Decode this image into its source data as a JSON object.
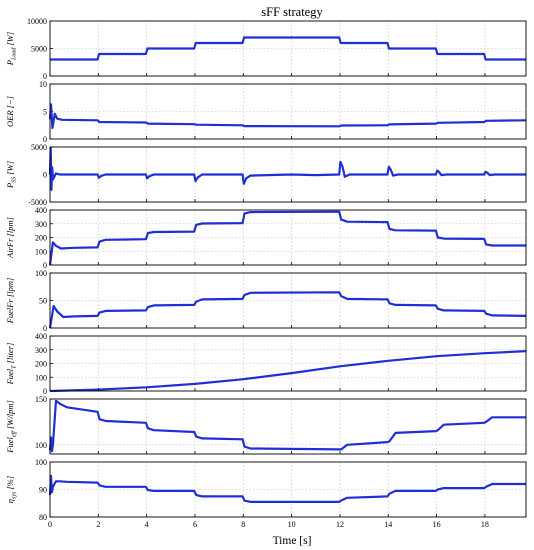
{
  "figure": {
    "title": "sFF strategy",
    "xlabel": "Time [s]"
  },
  "colors": {
    "line": "#1f2fd6",
    "axes": "#000000",
    "grid": "#bdbdbd"
  },
  "chart_data": [
    {
      "type": "line",
      "ylabel": "P_load [W]",
      "ylim": [
        0,
        10000
      ],
      "yticks": [
        0,
        5000,
        10000
      ],
      "xlim": [
        0,
        19.7
      ],
      "series": [
        {
          "x": [
            0,
            1.97,
            2.03,
            3.97,
            4.03,
            5.97,
            6.03,
            7.97,
            8.03,
            11.97,
            12.03,
            13.97,
            14.03,
            15.97,
            16.03,
            17.97,
            18.03,
            19.7
          ],
          "y": [
            3000,
            3000,
            4000,
            4000,
            5000,
            5000,
            6000,
            6000,
            7000,
            7000,
            6000,
            6000,
            5000,
            5000,
            4000,
            4000,
            3000,
            3000
          ]
        }
      ]
    },
    {
      "type": "line",
      "ylabel": "OER [−]",
      "ylim": [
        0,
        10
      ],
      "yticks": [
        0,
        5,
        10
      ],
      "xlim": [
        0,
        19.7
      ],
      "series": [
        {
          "x": [
            0,
            0.04,
            0.1,
            0.2,
            0.3,
            0.5,
            1.97,
            2.05,
            3.97,
            4.05,
            5.97,
            6.05,
            7.97,
            8.05,
            11.97,
            12.05,
            13.97,
            14.05,
            15.97,
            16.05,
            17.97,
            18.05,
            19.7
          ],
          "y": [
            3.6,
            6.3,
            2.0,
            4.6,
            3.7,
            3.5,
            3.4,
            3.1,
            3.0,
            2.8,
            2.7,
            2.6,
            2.5,
            2.35,
            2.3,
            2.45,
            2.5,
            2.65,
            2.8,
            2.95,
            3.1,
            3.3,
            3.4
          ]
        }
      ]
    },
    {
      "type": "line",
      "ylabel": "P_SS [W]",
      "ylim": [
        -5000,
        5000
      ],
      "yticks": [
        -5000,
        0,
        5000
      ],
      "xlim": [
        0,
        19.7
      ],
      "series": [
        {
          "x": [
            0,
            0.03,
            0.06,
            0.09,
            0.13,
            0.18,
            0.25,
            0.4,
            1.97,
            2.02,
            2.12,
            2.3,
            3.97,
            4.02,
            4.12,
            4.3,
            5.97,
            6.02,
            6.12,
            6.3,
            7.97,
            8.02,
            8.12,
            8.3,
            9.0,
            10.0,
            11.0,
            11.97,
            12.02,
            12.1,
            12.2,
            12.4,
            13.97,
            14.02,
            14.1,
            14.2,
            14.4,
            15.97,
            16.02,
            16.1,
            16.2,
            16.4,
            17.97,
            18.02,
            18.1,
            18.2,
            18.4,
            19.7
          ],
          "y": [
            0,
            4900,
            -2800,
            1300,
            -900,
            -400,
            200,
            0,
            0,
            -600,
            -250,
            0,
            0,
            -700,
            -300,
            0,
            0,
            -1200,
            -500,
            0,
            0,
            -1700,
            -700,
            -200,
            -100,
            0,
            -100,
            0,
            2300,
            1500,
            -400,
            0,
            0,
            1400,
            900,
            -200,
            0,
            0,
            700,
            500,
            -100,
            0,
            0,
            500,
            300,
            -100,
            0,
            0
          ]
        }
      ]
    },
    {
      "type": "line",
      "ylabel": "AirFr [lpm]",
      "ylim": [
        0,
        400
      ],
      "yticks": [
        0,
        100,
        200,
        300,
        400
      ],
      "xlim": [
        0,
        19.7
      ],
      "series": [
        {
          "x": [
            0,
            0.12,
            0.25,
            0.45,
            0.7,
            1.0,
            1.97,
            2.05,
            2.3,
            3.97,
            4.05,
            4.3,
            5.97,
            6.05,
            6.3,
            7.97,
            8.05,
            8.3,
            11.97,
            12.05,
            12.3,
            13.97,
            14.05,
            14.3,
            15.97,
            16.05,
            16.3,
            17.97,
            18.05,
            18.3,
            19.7
          ],
          "y": [
            0,
            165,
            140,
            120,
            122,
            125,
            128,
            170,
            183,
            188,
            232,
            240,
            243,
            292,
            302,
            305,
            375,
            385,
            388,
            330,
            315,
            312,
            262,
            252,
            250,
            200,
            192,
            190,
            150,
            142,
            142
          ]
        }
      ]
    },
    {
      "type": "line",
      "ylabel": "FuelFr [lpm]",
      "ylim": [
        0,
        100
      ],
      "yticks": [
        0,
        50,
        100
      ],
      "xlim": [
        0,
        19.7
      ],
      "series": [
        {
          "x": [
            0,
            0.15,
            0.3,
            0.55,
            1.0,
            1.97,
            2.05,
            2.3,
            3.97,
            4.05,
            4.3,
            5.97,
            6.05,
            6.3,
            7.97,
            8.05,
            8.3,
            11.97,
            12.05,
            12.3,
            13.97,
            14.05,
            14.3,
            15.97,
            16.05,
            16.3,
            17.97,
            18.05,
            18.3,
            19.7
          ],
          "y": [
            0,
            40,
            30,
            20,
            21,
            22,
            28,
            31,
            32,
            38,
            41,
            42,
            48,
            52,
            53,
            60,
            64,
            65,
            58,
            53,
            52,
            45,
            42,
            41,
            35,
            32,
            31,
            26,
            23,
            22
          ]
        }
      ]
    },
    {
      "type": "line",
      "ylabel": "Fuel_T [liter]",
      "ylim": [
        0,
        400
      ],
      "yticks": [
        0,
        100,
        200,
        300,
        400
      ],
      "xlim": [
        0,
        19.7
      ],
      "series": [
        {
          "x": [
            0,
            2,
            4,
            6,
            8,
            10,
            12,
            14,
            16,
            18,
            19.7
          ],
          "y": [
            0,
            10,
            27,
            52,
            86,
            130,
            180,
            220,
            253,
            275,
            290
          ]
        }
      ]
    },
    {
      "type": "line",
      "ylabel": "Fuel_eff [W/lpm]",
      "ylim": [
        90,
        150
      ],
      "yticks": [
        100,
        150
      ],
      "xlim": [
        0,
        19.7
      ],
      "series": [
        {
          "x": [
            0,
            0.04,
            0.08,
            0.12,
            0.25,
            0.4,
            0.7,
            1.97,
            2.05,
            2.3,
            3.97,
            4.05,
            4.3,
            5.97,
            6.05,
            6.3,
            7.97,
            8.05,
            8.3,
            11.97,
            12.05,
            12.3,
            13.97,
            14.05,
            14.3,
            15.97,
            16.05,
            16.3,
            17.97,
            18.05,
            18.3,
            19.7
          ],
          "y": [
            94,
            108,
            93,
            100,
            148,
            145,
            141,
            136,
            128,
            126,
            124,
            118,
            116,
            114,
            109,
            107,
            106,
            98,
            96,
            95,
            95,
            100,
            103,
            104,
            113,
            115,
            116,
            122,
            124,
            125,
            130,
            130
          ]
        }
      ]
    },
    {
      "type": "line",
      "ylabel": "η_sys [%]",
      "ylim": [
        80,
        100
      ],
      "yticks": [
        80,
        90,
        100
      ],
      "xlim": [
        0,
        19.7
      ],
      "series": [
        {
          "x": [
            0,
            0.04,
            0.08,
            0.12,
            0.25,
            0.4,
            0.7,
            1.97,
            2.05,
            2.3,
            3.97,
            4.05,
            4.3,
            5.97,
            6.05,
            6.3,
            7.97,
            8.05,
            8.3,
            11.97,
            12.05,
            12.3,
            13.97,
            14.05,
            14.3,
            15.97,
            16.05,
            16.3,
            17.97,
            18.05,
            18.3,
            19.7
          ],
          "y": [
            88,
            95,
            89,
            91,
            93,
            93,
            92.8,
            92.5,
            91.5,
            91,
            91,
            89.8,
            89.5,
            89.5,
            88,
            87.5,
            87.5,
            86,
            85.5,
            85.5,
            86,
            87,
            87.5,
            88.5,
            89.5,
            89.5,
            90,
            90.5,
            90.5,
            91,
            92,
            92
          ]
        }
      ]
    }
  ],
  "ylabels": [
    {
      "main": "P",
      "sub": "Load",
      "unit": " [W]"
    },
    {
      "main": "OER",
      "sub": "",
      "unit": " [−]"
    },
    {
      "main": "P",
      "sub": "SS",
      "unit": " [W]"
    },
    {
      "main": "AirFr",
      "sub": "",
      "unit": " [lpm]"
    },
    {
      "main": "FuelFr",
      "sub": "",
      "unit": " [lpm]"
    },
    {
      "main": "Fuel",
      "sub": "T",
      "unit": " [liter]"
    },
    {
      "main": "Fuel",
      "sub": "eff",
      "unit": " [W/lpm]"
    },
    {
      "main": "η",
      "sub": "sys",
      "unit": " [%]"
    }
  ],
  "xticks": [
    0,
    2,
    4,
    6,
    8,
    10,
    12,
    14,
    16,
    18
  ]
}
